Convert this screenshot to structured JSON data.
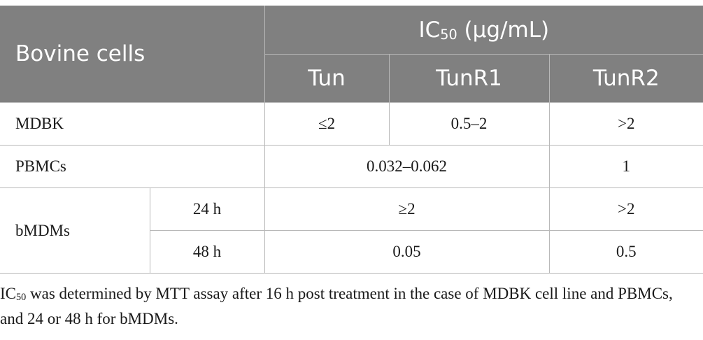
{
  "table": {
    "header": {
      "row_label_header": "Bovine cells",
      "ic50_prefix": "IC",
      "ic50_sub": "50",
      "ic50_suffix": " (μg/mL)",
      "columns": [
        "Tun",
        "TunR1",
        "TunR2"
      ]
    },
    "rows": {
      "mdbk": {
        "label": "MDBK",
        "tun": "≤2",
        "tunr1": "0.5–2",
        "tunr2": ">2"
      },
      "pbmcs": {
        "label": "PBMCs",
        "tun_tunr1": "0.032–0.062",
        "tunr2": "1"
      },
      "bmdms": {
        "label": "bMDMs",
        "sub_rows": [
          {
            "time": "24 h",
            "tun_tunr1": "≥2",
            "tunr2": ">2"
          },
          {
            "time": "48 h",
            "tun_tunr1": "0.05",
            "tunr2": "0.5"
          }
        ]
      }
    }
  },
  "footnote": {
    "prefix": "IC",
    "sub": "50",
    "text": " was determined by MTT assay after 16 h post treatment in the case of MDBK cell line and PBMCs, and 24 or 48 h for bMDMs."
  }
}
